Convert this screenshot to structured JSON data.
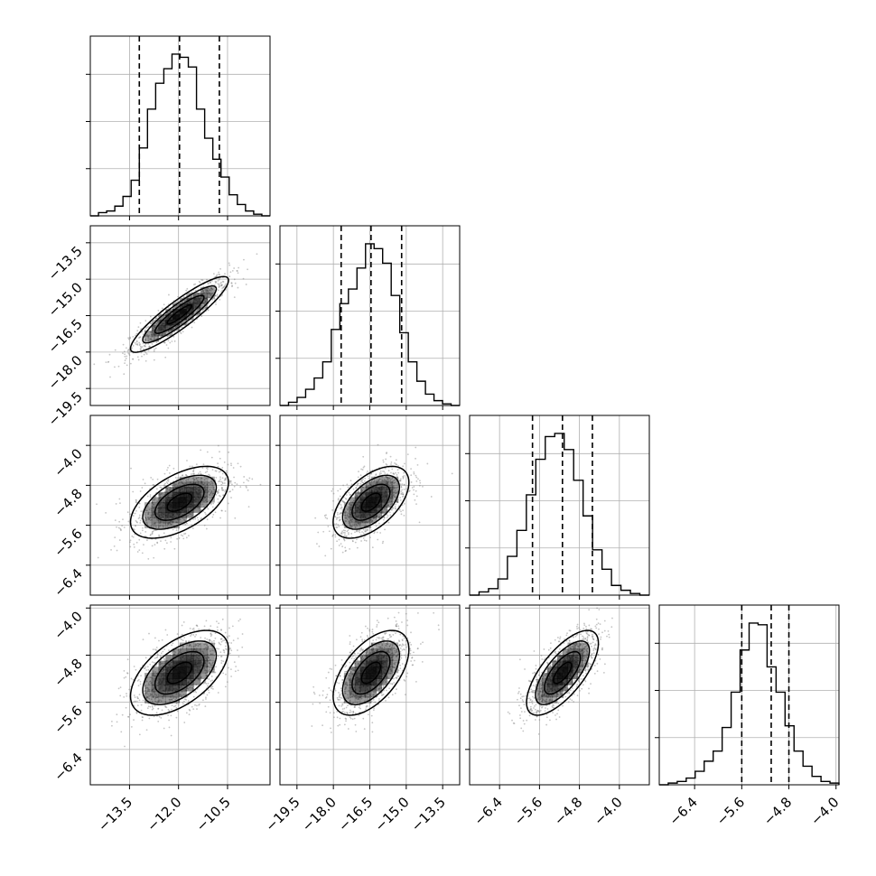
{
  "colors": {
    "background": "#ffffff",
    "axes": "#000000",
    "grid": "#b0b0b0",
    "points": "#7f7f7f",
    "density": "#000000"
  },
  "chart_data": {
    "type": "corner",
    "grid": true,
    "n_params": 4,
    "param_ranges": [
      [
        -14.7,
        -9.2
      ],
      [
        -20.2,
        -12.8
      ],
      [
        -7.0,
        -3.4
      ],
      [
        -7.0,
        -3.95
      ]
    ],
    "diag_ticks": [
      {
        "values": [
          -13.5,
          -12.0,
          -10.5
        ],
        "labels": [
          "−13.5",
          "−12.0",
          "−10.5"
        ]
      },
      {
        "values": [
          -19.5,
          -18.0,
          -16.5,
          -15.0,
          -13.5
        ],
        "labels": [
          "−19.5",
          "−18.0",
          "−16.5",
          "−15.0",
          "−13.5"
        ]
      },
      {
        "values": [
          -6.4,
          -5.6,
          -4.8,
          -4.0
        ],
        "labels": [
          "−6.4",
          "−5.6",
          "−4.8",
          "−4.0"
        ]
      },
      {
        "values": [
          -6.4,
          -5.6,
          -4.8,
          -4.0
        ],
        "labels": [
          "−6.4",
          "−5.6",
          "−4.8",
          "−4.0"
        ]
      }
    ],
    "row_ticks": [
      null,
      {
        "values": [
          -13.5,
          -15.0,
          -16.5,
          -18.0,
          -19.5
        ],
        "labels": [
          "−13.5",
          "−15.0",
          "−16.5",
          "−18.0",
          "−19.5"
        ]
      },
      {
        "values": [
          -4.0,
          -4.8,
          -5.6,
          -6.4
        ],
        "labels": [
          "−4.0",
          "−4.8",
          "−5.6",
          "−6.4"
        ]
      },
      {
        "values": [
          -4.0,
          -4.8,
          -5.6,
          -6.4
        ],
        "labels": [
          "−4.0",
          "−4.8",
          "−5.6",
          "−6.4"
        ]
      }
    ],
    "quantiles": [
      [
        -13.2,
        -11.97,
        -10.75
      ],
      [
        -17.68,
        -16.45,
        -15.19
      ],
      [
        -5.74,
        -5.14,
        -4.54
      ],
      [
        -5.6,
        -5.1,
        -4.8
      ]
    ],
    "histograms": [
      {
        "edges_from": -14.7,
        "edges_to": -9.2,
        "counts": [
          0,
          2,
          3,
          6,
          12,
          22,
          42,
          66,
          82,
          91,
          100,
          98,
          92,
          66,
          48,
          35,
          24,
          13,
          7,
          3,
          1,
          0
        ]
      },
      {
        "edges_from": -20.2,
        "edges_to": -12.8,
        "counts": [
          0,
          2,
          5,
          10,
          17,
          27,
          47,
          63,
          72,
          85,
          100,
          97,
          88,
          68,
          45,
          27,
          15,
          7,
          3,
          1,
          0
        ]
      },
      {
        "edges_from": -7.0,
        "edges_to": -3.4,
        "counts": [
          0,
          2,
          4,
          10,
          24,
          40,
          62,
          84,
          98,
          100,
          90,
          71,
          49,
          28,
          16,
          6,
          3,
          1,
          0
        ]
      },
      {
        "edges_from": -7.0,
        "edges_to": -3.95,
        "counts": [
          0,
          1,
          2,
          4,
          8,
          14,
          20,
          34,
          55,
          80,
          96,
          95,
          70,
          55,
          35,
          20,
          11,
          5,
          2,
          1
        ]
      }
    ],
    "joint": [
      {
        "row": 1,
        "col": 0,
        "mean": [
          -11.97,
          -16.45
        ],
        "sd": [
          0.75,
          0.78
        ],
        "rho": 0.9
      },
      {
        "row": 2,
        "col": 0,
        "mean": [
          -11.97,
          -5.14
        ],
        "sd": [
          0.75,
          0.36
        ],
        "rho": 0.55
      },
      {
        "row": 2,
        "col": 1,
        "mean": [
          -16.45,
          -5.14
        ],
        "sd": [
          0.78,
          0.36
        ],
        "rho": 0.55
      },
      {
        "row": 3,
        "col": 0,
        "mean": [
          -11.97,
          -5.1
        ],
        "sd": [
          0.75,
          0.36
        ],
        "rho": 0.55
      },
      {
        "row": 3,
        "col": 1,
        "mean": [
          -16.45,
          -5.1
        ],
        "sd": [
          0.78,
          0.36
        ],
        "rho": 0.55
      },
      {
        "row": 3,
        "col": 2,
        "mean": [
          -5.14,
          -5.1
        ],
        "sd": [
          0.36,
          0.36
        ],
        "rho": 0.7
      }
    ],
    "contour_levels": [
      0.5,
      1.0,
      1.5,
      2.0
    ]
  }
}
